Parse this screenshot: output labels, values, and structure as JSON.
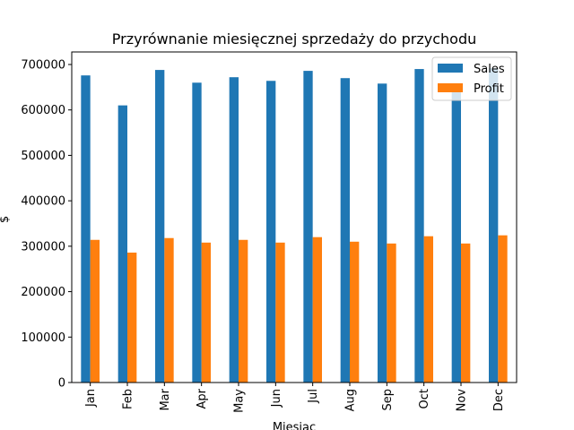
{
  "chart_data": {
    "type": "bar",
    "title": "Przyrównanie miesięcznej sprzedaży do przychodu",
    "xlabel": "Miesiąc",
    "ylabel": "$",
    "categories": [
      "Jan",
      "Feb",
      "Mar",
      "Apr",
      "May",
      "Jun",
      "Jul",
      "Aug",
      "Sep",
      "Oct",
      "Nov",
      "Dec"
    ],
    "series": [
      {
        "name": "Sales",
        "color": "#1f77b4",
        "values": [
          676000,
          610000,
          688000,
          660000,
          672000,
          664000,
          686000,
          670000,
          658000,
          690000,
          650000,
          692000
        ]
      },
      {
        "name": "Profit",
        "color": "#ff7f0e",
        "values": [
          314000,
          286000,
          318000,
          308000,
          314000,
          308000,
          320000,
          310000,
          306000,
          322000,
          306000,
          324000
        ]
      }
    ],
    "ylim": [
      0,
      700000
    ],
    "yticks": [
      "0",
      "100000",
      "200000",
      "300000",
      "400000",
      "500000",
      "600000",
      "700000"
    ],
    "grid": false,
    "legend_position": "top-right"
  }
}
